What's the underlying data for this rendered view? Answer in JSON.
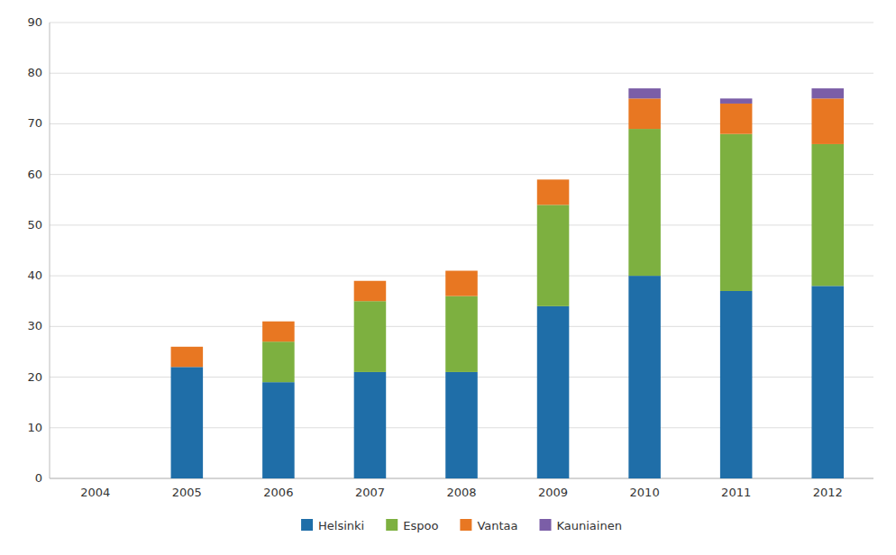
{
  "chart_data": {
    "type": "bar",
    "stacked": true,
    "categories": [
      "2004",
      "2005",
      "2006",
      "2007",
      "2008",
      "2009",
      "2010",
      "2011",
      "2012"
    ],
    "series": [
      {
        "name": "Helsinki",
        "color": "#1F6EA8",
        "values": [
          0,
          22,
          19,
          21,
          21,
          34,
          40,
          37,
          38
        ]
      },
      {
        "name": "Espoo",
        "color": "#7DB040",
        "values": [
          0,
          0,
          8,
          14,
          15,
          20,
          29,
          31,
          28
        ]
      },
      {
        "name": "Vantaa",
        "color": "#E87722",
        "values": [
          0,
          4,
          4,
          4,
          5,
          5,
          6,
          6,
          9
        ]
      },
      {
        "name": "Kauniainen",
        "color": "#7B5EA7",
        "values": [
          0,
          0,
          0,
          0,
          0,
          0,
          2,
          1,
          2
        ]
      }
    ],
    "ylim": [
      0,
      90
    ],
    "yticks": [
      0,
      10,
      20,
      30,
      40,
      50,
      60,
      70,
      80,
      90
    ],
    "grid": true,
    "legend": "bottom"
  }
}
